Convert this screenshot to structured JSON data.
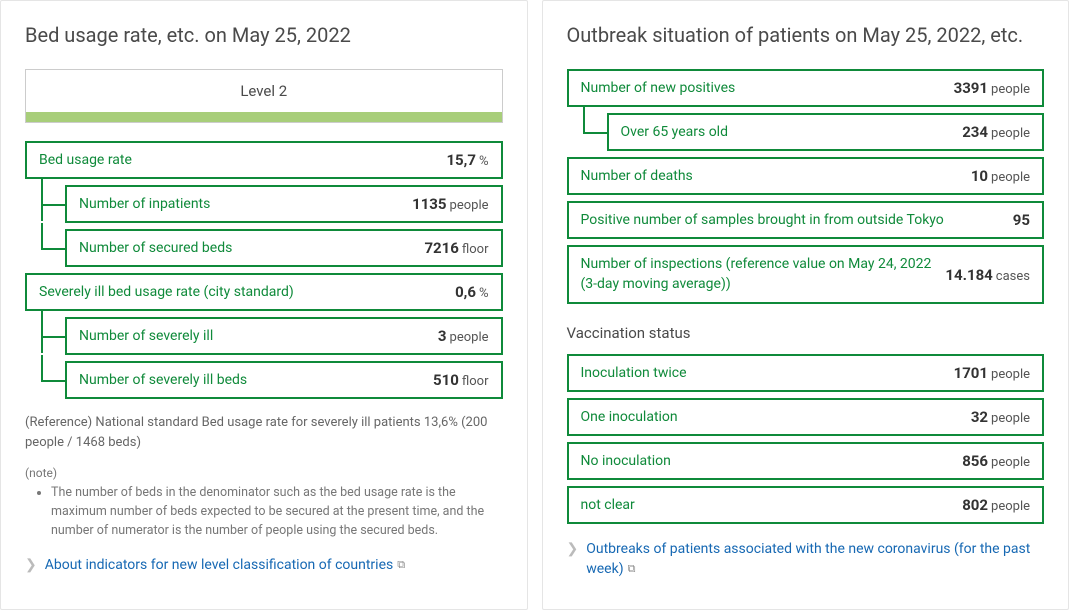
{
  "colors": {
    "green_border": "#0f8a3a",
    "green_text": "#0f8a3a",
    "level_bar": "#a8ce7a",
    "panel_border": "#e5e5e5",
    "link": "#1668b3",
    "muted": "#777777"
  },
  "left": {
    "title": "Bed usage rate, etc. on May 25, 2022",
    "level_label": "Level 2",
    "rows": [
      {
        "label": "Bed usage rate",
        "value": "15,7",
        "unit": "%",
        "indent": false
      },
      {
        "label": "Number of inpatients",
        "value": "1135",
        "unit": "people",
        "indent": true,
        "continue": true
      },
      {
        "label": "Number of secured beds",
        "value": "7216",
        "unit": "floor",
        "indent": true
      },
      {
        "label": "Severely ill bed usage rate (city standard)",
        "value": "0,6",
        "unit": "%",
        "indent": false
      },
      {
        "label": "Number of severely ill",
        "value": "3",
        "unit": "people",
        "indent": true,
        "continue": true
      },
      {
        "label": "Number of severely ill beds",
        "value": "510",
        "unit": "floor",
        "indent": true
      }
    ],
    "reference": "(Reference) National standard Bed usage rate for severely ill patients 13,6% (200 people / 1468 beds)",
    "note_label": "(note)",
    "note_item": "The number of beds in the denominator such as the bed usage rate is the maximum number of beds expected to be secured at the present time, and the number of numerator is the number of people using the secured beds.",
    "link": "About indicators for new level classification of countries"
  },
  "right": {
    "title": "Outbreak situation of patients on May 25, 2022, etc.",
    "rows_top": [
      {
        "label": "Number of new positives",
        "value": "3391",
        "unit": "people",
        "indent": false
      },
      {
        "label": "Over 65 years old",
        "value": "234",
        "unit": "people",
        "indent": true
      },
      {
        "label": "Number of deaths",
        "value": "10",
        "unit": "people",
        "indent": false
      },
      {
        "label": "Positive number of samples brought in from outside Tokyo",
        "value": "95",
        "unit": "",
        "indent": false
      },
      {
        "label": "Number of inspections (reference value on May 24, 2022 (3-day moving average))",
        "value": "14.184",
        "unit": "cases",
        "indent": false,
        "multiline": true
      }
    ],
    "vaccination_title": "Vaccination status",
    "rows_vacc": [
      {
        "label": "Inoculation twice",
        "value": "1701",
        "unit": "people"
      },
      {
        "label": "One inoculation",
        "value": "32",
        "unit": "people"
      },
      {
        "label": "No inoculation",
        "value": "856",
        "unit": "people"
      },
      {
        "label": "not clear",
        "value": "802",
        "unit": "people"
      }
    ],
    "link": "Outbreaks of patients associated with the new coronavirus (for the past week)"
  }
}
